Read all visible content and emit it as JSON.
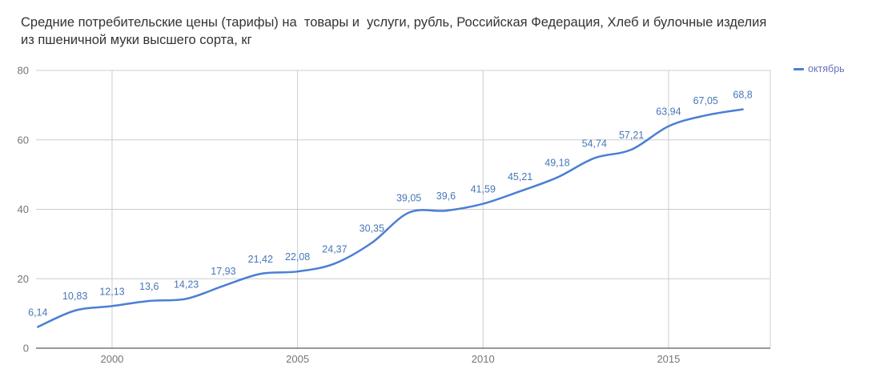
{
  "header": {
    "title": "Средние потребительские цены (тарифы) на  товары и  услуги, рубль, Российская Федерация, Хлеб и булочные изделия из пшеничной муки высшего сорта, кг"
  },
  "legend": {
    "items": [
      {
        "label": "октябрь",
        "color": "#4a7fd4"
      }
    ]
  },
  "chart_data": {
    "type": "line",
    "title": "Средние потребительские цены (тарифы) на товары и услуги, рубль, Российская Федерация, Хлеб и булочные изделия из пшеничной муки высшего сорта, кг",
    "x": [
      1998,
      1999,
      2000,
      2001,
      2002,
      2003,
      2004,
      2005,
      2006,
      2007,
      2008,
      2009,
      2010,
      2011,
      2012,
      2013,
      2014,
      2015,
      2016,
      2017
    ],
    "series": [
      {
        "name": "октябрь",
        "values": [
          6.14,
          10.83,
          12.13,
          13.6,
          14.23,
          17.93,
          21.42,
          22.08,
          24.37,
          30.35,
          39.05,
          39.6,
          41.59,
          45.21,
          49.18,
          54.74,
          57.21,
          63.94,
          67.05,
          68.8
        ]
      }
    ],
    "point_labels": [
      "6,14",
      "10,83",
      "12,13",
      "13,6",
      "14,23",
      "17,93",
      "21,42",
      "22,08",
      "24,37",
      "30,35",
      "39,05",
      "39,6",
      "41,59",
      "45,21",
      "49,18",
      "54,74",
      "57,21",
      "63,94",
      "67,05",
      "68,8"
    ],
    "xlabel": "",
    "ylabel": "",
    "ylim": [
      0,
      80
    ],
    "yticks": [
      0,
      20,
      40,
      60,
      80
    ],
    "xticks": [
      2000,
      2005,
      2010,
      2015
    ],
    "grid": true,
    "legend_position": "top-right",
    "colors": {
      "line": "#4a7fd4",
      "annotation": "#4676b8",
      "grid": "#cccccc",
      "baseline": "#333333",
      "axis_labels": "#757575",
      "legend_text": "#6673b8",
      "title": "#333333",
      "background": "#ffffff"
    }
  }
}
